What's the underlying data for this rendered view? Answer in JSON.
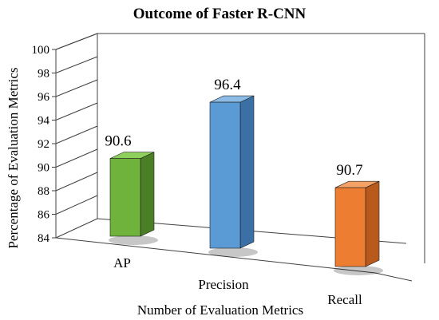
{
  "chart_data": {
    "type": "bar",
    "title": "Outcome of Faster R-CNN",
    "xlabel": "Number of Evaluation Metrics",
    "ylabel": "Percentage  of Evaluation Metrics",
    "categories": [
      "AP",
      "Precision",
      "Recall"
    ],
    "values": [
      90.6,
      96.4,
      90.7
    ],
    "value_labels": [
      "90.6",
      "96.4",
      "90.7"
    ],
    "ylim": [
      84,
      100
    ],
    "yticks": [
      "84",
      "86",
      "88",
      "90",
      "92",
      "94",
      "96",
      "98",
      "100"
    ],
    "grid": false,
    "legend": "none",
    "style": "3d-column",
    "colors": {
      "bars": [
        "#6fb23c",
        "#5b9bd5",
        "#ed7d31"
      ],
      "bar_sides": [
        "#4b7f26",
        "#3b70a6",
        "#b85a1c"
      ],
      "bar_tops": [
        "#8fcf5c",
        "#8cbbe6",
        "#f4a266"
      ],
      "axis": "#404040"
    }
  }
}
